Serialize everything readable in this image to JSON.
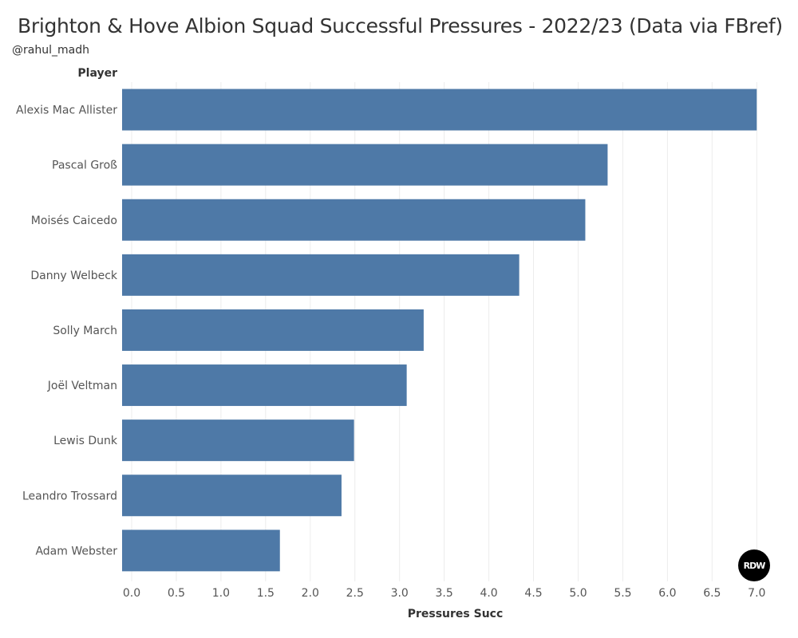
{
  "chart_title": "Brighton & Hove Albion Squad Successful Pressures - 2022/23 (Data via FBref)",
  "author": "@rahul_madh",
  "logo_text": "RDW",
  "colors": {
    "bar": "#4e79a7",
    "grid": "#ececec",
    "text": "#555555"
  },
  "chart_data": {
    "type": "bar",
    "orientation": "horizontal",
    "title": "Brighton & Hove Albion Squad Successful Pressures - 2022/23 (Data via FBref)",
    "row_header": "Player",
    "xlabel": "Pressures Succ",
    "categories": [
      "Alexis Mac Allister",
      "Pascal Groß",
      "Moisés Caicedo",
      "Danny Welbeck",
      "Solly March",
      "Joël Veltman",
      "Lewis Dunk",
      "Leandro Trossard",
      "Adam Webster"
    ],
    "values": [
      7.0,
      5.33,
      5.08,
      4.34,
      3.27,
      3.08,
      2.49,
      2.35,
      1.66
    ],
    "xlim": [
      0,
      7.2
    ],
    "xticks": [
      "0.0",
      "0.5",
      "1.0",
      "1.5",
      "2.0",
      "2.5",
      "3.0",
      "3.5",
      "4.0",
      "4.5",
      "5.0",
      "5.5",
      "6.0",
      "6.5",
      "7.0"
    ],
    "grid": true
  }
}
